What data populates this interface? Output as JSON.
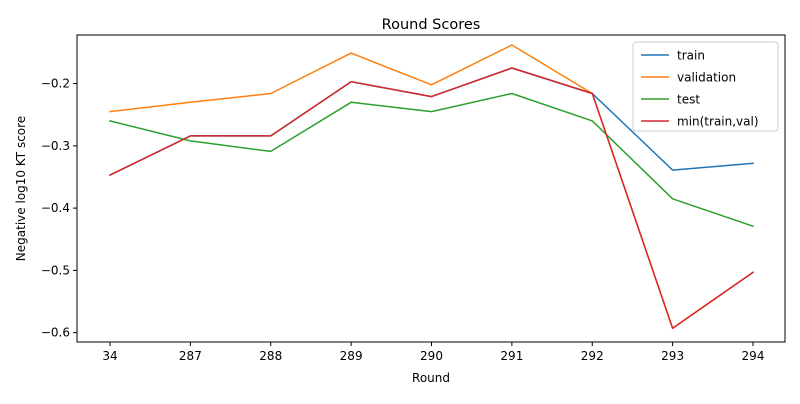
{
  "chart_data": {
    "type": "line",
    "title": "Round Scores",
    "xlabel": "Round",
    "ylabel": "Negative log10 KT score",
    "categories": [
      "34",
      "287",
      "288",
      "289",
      "290",
      "291",
      "292",
      "293",
      "294"
    ],
    "ylim": [
      -0.615,
      -0.122
    ],
    "yticks": [
      -0.6,
      -0.5,
      -0.4,
      -0.3,
      -0.2
    ],
    "ytick_labels": [
      "−0.6",
      "−0.5",
      "−0.4",
      "−0.3",
      "−0.2"
    ],
    "grid": false,
    "legend_position": "top-right",
    "series": [
      {
        "name": "train",
        "color": "#1f77b4",
        "values": [
          -0.347,
          -0.284,
          -0.284,
          -0.197,
          -0.221,
          -0.175,
          -0.216,
          -0.339,
          -0.328
        ]
      },
      {
        "name": "validation",
        "color": "#ff7f0e",
        "values": [
          -0.245,
          -0.23,
          -0.216,
          -0.151,
          -0.202,
          -0.138,
          -0.216,
          -0.593,
          -0.503
        ]
      },
      {
        "name": "test",
        "color": "#2ca02c",
        "values": [
          -0.26,
          -0.292,
          -0.309,
          -0.23,
          -0.245,
          -0.216,
          -0.26,
          -0.385,
          -0.429
        ]
      },
      {
        "name": "min(train,val)",
        "color": "#d62728",
        "values": [
          -0.347,
          -0.284,
          -0.284,
          -0.197,
          -0.221,
          -0.175,
          -0.216,
          -0.593,
          -0.503
        ]
      }
    ]
  }
}
